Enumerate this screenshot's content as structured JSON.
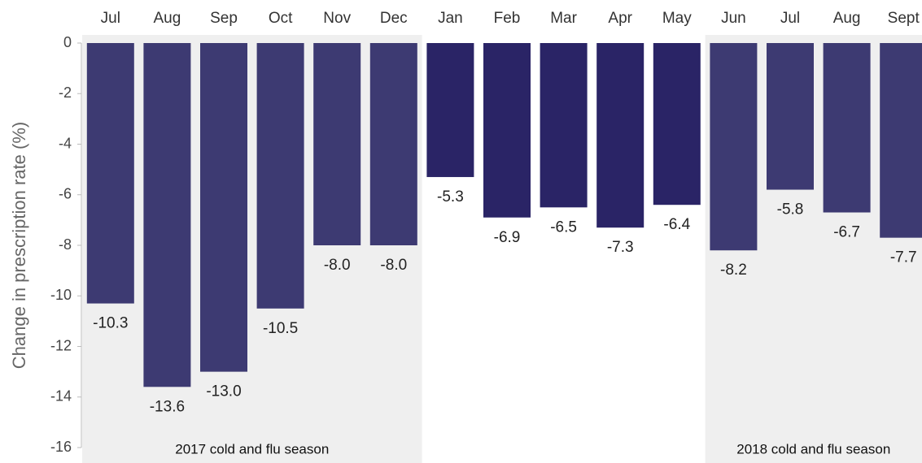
{
  "chart_data": {
    "type": "bar",
    "y_axis_label": "Change in prescription rate (%)",
    "categories": [
      "Jul",
      "Aug",
      "Sep",
      "Oct",
      "Nov",
      "Dec",
      "Jan",
      "Feb",
      "Mar",
      "Apr",
      "May",
      "Jun",
      "Jul",
      "Aug",
      "Sept"
    ],
    "values": [
      -10.3,
      -13.6,
      -13.0,
      -10.5,
      -8.0,
      -8.0,
      -5.3,
      -6.9,
      -6.5,
      -7.3,
      -6.4,
      -8.2,
      -5.8,
      -6.7,
      -7.7
    ],
    "value_labels": [
      "-10.3",
      "-13.6",
      "-13.0",
      "-10.5",
      "-8.0",
      "-8.0",
      "-5.3",
      "-6.9",
      "-6.5",
      "-7.3",
      "-6.4",
      "-8.2",
      "-5.8",
      "-6.7",
      "-7.7"
    ],
    "colors": [
      "#3d3a72",
      "#3d3a72",
      "#3d3a72",
      "#3d3a72",
      "#3d3a72",
      "#3d3a72",
      "#2a2466",
      "#2a2466",
      "#2a2466",
      "#2a2466",
      "#2a2466",
      "#3d3a72",
      "#3d3a72",
      "#3d3a72",
      "#3d3a72"
    ],
    "ylim": [
      -16,
      0
    ],
    "yticks": [
      0,
      -2,
      -4,
      -6,
      -8,
      -10,
      -12,
      -14,
      -16
    ],
    "seasons": [
      {
        "label": "2017 cold and flu season",
        "from": 0,
        "to": 5
      },
      {
        "label": "2018 cold and flu season",
        "from": 11,
        "to": 14
      }
    ]
  }
}
